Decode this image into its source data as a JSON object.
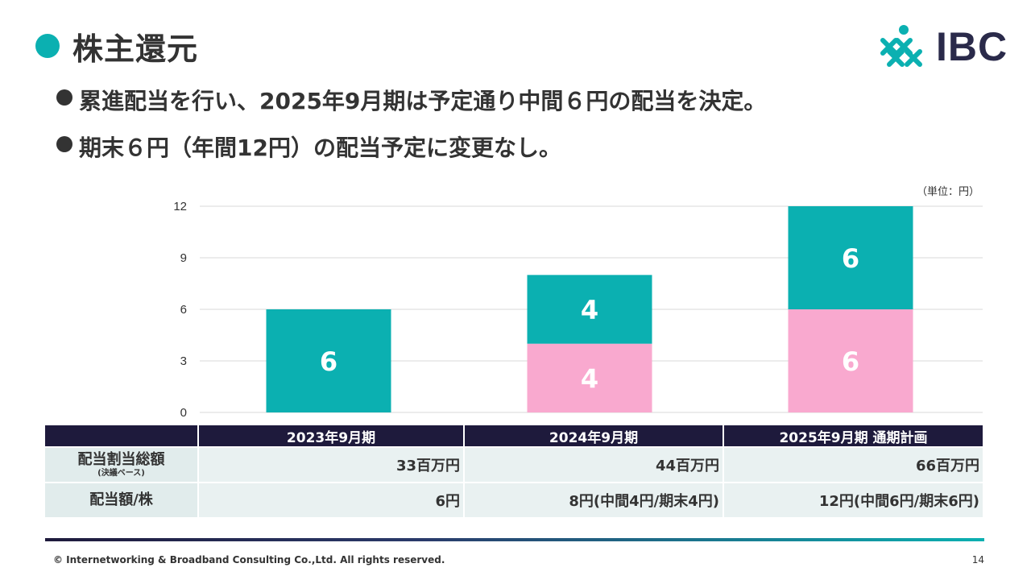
{
  "page": {
    "title": "株主還元",
    "bullets": [
      "累進配当を行い、2025年9月期は予定通り中間６円の配当を決定。",
      "期末６円（年間12円）の配当予定に変更なし。"
    ],
    "logo_text": "IBC",
    "unit_note": "（単位：円）",
    "footer": "© Internetworking & Broadband Consulting Co.,Ltd. All rights reserved.",
    "page_number": "14"
  },
  "colors": {
    "accent": "#0bb0b1",
    "pink": "#f9a9cf",
    "navy": "#1e1a3c",
    "table_bg": "#e9f1f1"
  },
  "chart_data": {
    "type": "bar",
    "stacked": true,
    "categories": [
      "2023年9月期",
      "2024年9月期",
      "2025年9月期 通期計画"
    ],
    "series": [
      {
        "name": "",
        "color": "#f9a9cf",
        "values": [
          0,
          4,
          6
        ],
        "labels": [
          "",
          "4",
          "6"
        ]
      },
      {
        "name": "",
        "color": "#0bb0b1",
        "values": [
          6,
          4,
          6
        ],
        "labels": [
          "6",
          "4",
          "6"
        ]
      }
    ],
    "ylim": [
      0,
      12
    ],
    "yticks": [
      0,
      3,
      6,
      9,
      12
    ],
    "grid": true
  },
  "table": {
    "headers": [
      "",
      "2023年9月期",
      "2024年9月期",
      "2025年9月期 通期計画"
    ],
    "rows": [
      {
        "label": "配当割当総額",
        "sublabel": "(決議ベース)",
        "values": [
          "33百万円",
          "44百万円",
          "66百万円"
        ]
      },
      {
        "label": "配当額/株",
        "sublabel": "",
        "values": [
          "6円",
          "8円(中間4円/期末4円)",
          "12円(中間6円/期末6円)"
        ]
      }
    ]
  }
}
